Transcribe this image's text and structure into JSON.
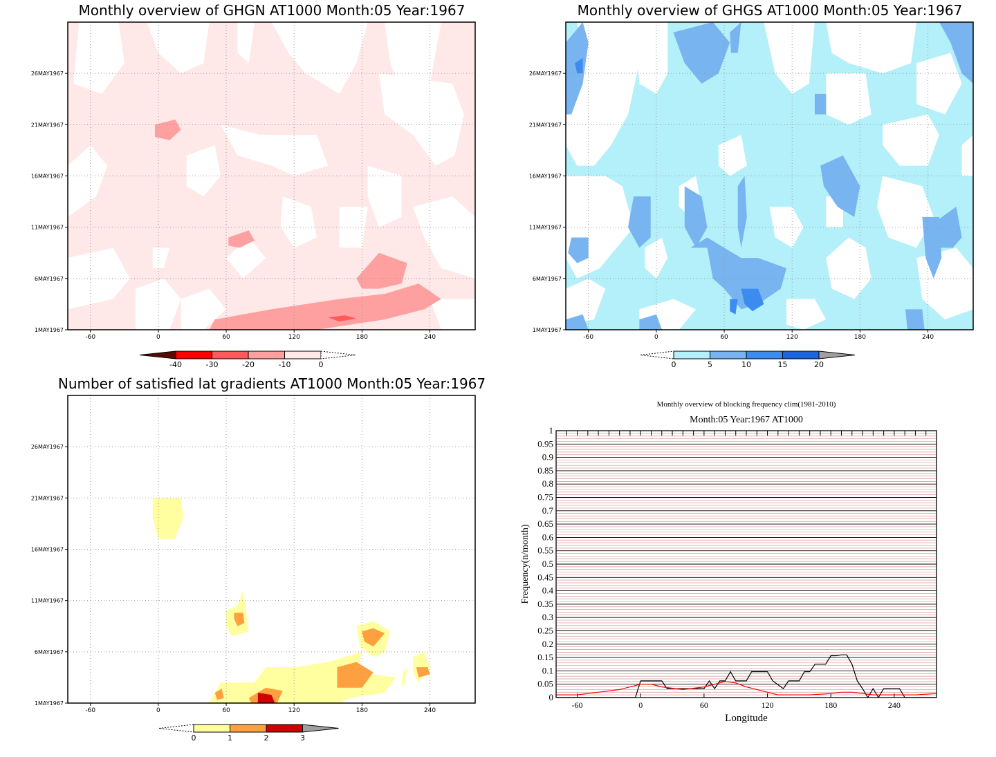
{
  "chart_data": [
    {
      "type": "heatmap",
      "title": "Monthly overview of GHGN AT1000 Month:05 Year:1967",
      "x_ticks": [
        "-60",
        "0",
        "60",
        "120",
        "180",
        "240"
      ],
      "y_ticks": [
        "1MAY1967",
        "6MAY1967",
        "11MAY1967",
        "16MAY1967",
        "21MAY1967",
        "26MAY1967"
      ],
      "xlim": [
        -80,
        280
      ],
      "ylim": [
        1,
        31
      ],
      "legend": {
        "labels": [
          "-40",
          "-30",
          "-20",
          "-10",
          "0"
        ],
        "colors": [
          "#5a0a00",
          "#ff0000",
          "#ff5a5a",
          "#ffa0a0",
          "#ffe8e8",
          "#ffffff"
        ]
      }
    },
    {
      "type": "heatmap",
      "title": "Monthly overview of GHGS AT1000 Month:05 Year:1967",
      "x_ticks": [
        "-60",
        "0",
        "60",
        "120",
        "180",
        "240"
      ],
      "y_ticks": [
        "1MAY1967",
        "6MAY1967",
        "11MAY1967",
        "16MAY1967",
        "21MAY1967",
        "26MAY1967"
      ],
      "xlim": [
        -80,
        280
      ],
      "ylim": [
        1,
        31
      ],
      "legend": {
        "labels": [
          "0",
          "5",
          "10",
          "15",
          "20"
        ],
        "colors": [
          "#ffffff",
          "#b4f0fa",
          "#78b4f0",
          "#3c8cf0",
          "#1e64dc",
          "#a0a0a0"
        ]
      }
    },
    {
      "type": "heatmap",
      "title": "Number of satisfied lat gradients AT1000 Month:05 Year:1967",
      "x_ticks": [
        "-60",
        "0",
        "60",
        "120",
        "180",
        "240"
      ],
      "y_ticks": [
        "1MAY1967",
        "6MAY1967",
        "11MAY1967",
        "16MAY1967",
        "21MAY1967",
        "26MAY1967"
      ],
      "xlim": [
        -80,
        280
      ],
      "ylim": [
        1,
        31
      ],
      "legend": {
        "labels": [
          "0",
          "1",
          "2",
          "3"
        ],
        "colors": [
          "#ffffff",
          "#ffffa0",
          "#ffa040",
          "#d00000",
          "#a0a0a0"
        ]
      }
    },
    {
      "type": "line",
      "title": "Monthly overview of blocking frequency clim(1981-2010)",
      "subtitle": "Month:05 Year:1967  AT1000",
      "xlabel": "Longitude",
      "ylabel": "Frequency(n/month)",
      "x_ticks": [
        "-60",
        "0",
        "60",
        "120",
        "180",
        "240"
      ],
      "y_ticks": [
        "0",
        "0.05",
        "0.1",
        "0.15",
        "0.2",
        "0.25",
        "0.3",
        "0.35",
        "0.4",
        "0.45",
        "0.5",
        "0.55",
        "0.6",
        "0.65",
        "0.7",
        "0.75",
        "0.8",
        "0.85",
        "0.9",
        "0.95",
        "1"
      ],
      "xlim": [
        -80,
        280
      ],
      "ylim": [
        0,
        1
      ],
      "series": [
        {
          "color": "#000000",
          "x": [
            -80,
            -5,
            0,
            5,
            20,
            25,
            30,
            40,
            60,
            65,
            70,
            75,
            80,
            85,
            90,
            100,
            105,
            120,
            125,
            135,
            140,
            150,
            155,
            160,
            165,
            170,
            175,
            180,
            185,
            190,
            195,
            200,
            205,
            210,
            215,
            220,
            225,
            230,
            235,
            240,
            245,
            250,
            280
          ],
          "y": [
            0,
            0,
            0.0625,
            0.0625,
            0.0625,
            0.0333,
            0.0333,
            0.0333,
            0.0333,
            0.0625,
            0.0333,
            0.0625,
            0.0625,
            0.0967,
            0.0625,
            0.0625,
            0.0967,
            0.0967,
            0.0625,
            0.0333,
            0.0625,
            0.0625,
            0.0967,
            0.0967,
            0.125,
            0.125,
            0.125,
            0.1567,
            0.1567,
            0.16,
            0.16,
            0.125,
            0.0625,
            0.0333,
            0.0,
            0.0333,
            0.0,
            0.0333,
            0.0333,
            0.0333,
            0.0333,
            0,
            0
          ]
        },
        {
          "color": "#ff0000",
          "x": [
            -80,
            -60,
            -40,
            -20,
            -10,
            0,
            10,
            20,
            40,
            60,
            70,
            80,
            90,
            100,
            110,
            120,
            130,
            140,
            160,
            180,
            190,
            200,
            210,
            220,
            240,
            260,
            280
          ],
          "y": [
            0.01,
            0.01,
            0.02,
            0.03,
            0.04,
            0.05,
            0.05,
            0.04,
            0.03,
            0.04,
            0.05,
            0.06,
            0.055,
            0.04,
            0.03,
            0.02,
            0.01,
            0.01,
            0.01,
            0.015,
            0.02,
            0.02,
            0.015,
            0.01,
            0.01,
            0.01,
            0.015
          ]
        }
      ]
    }
  ]
}
